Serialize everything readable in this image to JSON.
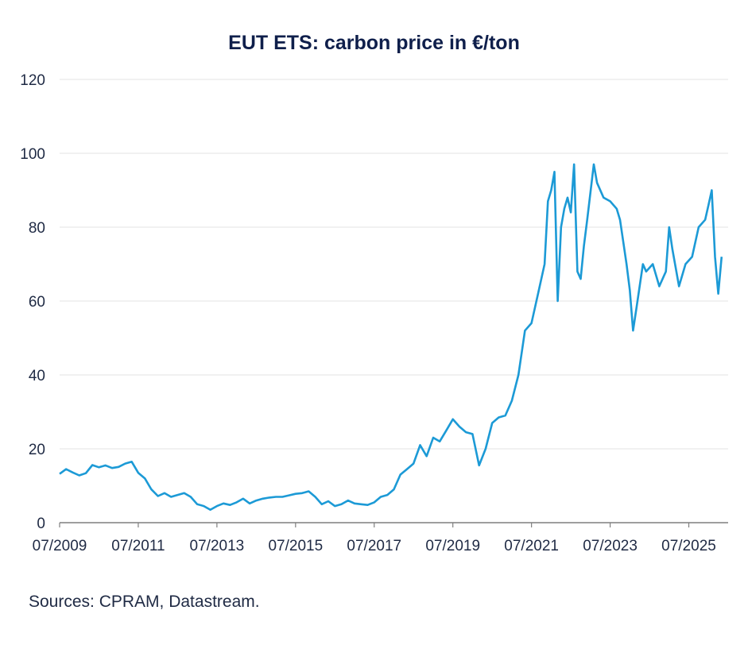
{
  "chart_data": {
    "type": "line",
    "title": "EUT ETS: carbon price in €/ton",
    "xlabel": "",
    "ylabel": "",
    "ylim": [
      0,
      120
    ],
    "yticks": [
      0,
      20,
      40,
      60,
      80,
      100,
      120
    ],
    "xticks": [
      "07/2009",
      "07/2011",
      "07/2013",
      "07/2015",
      "07/2017",
      "07/2019",
      "07/2021",
      "07/2023",
      "07/2025"
    ],
    "grid": "horizontal",
    "series": [
      {
        "color": "#1c9ad6",
        "points": [
          [
            "2009-07",
            13.2
          ],
          [
            "2009-09",
            14.5
          ],
          [
            "2009-11",
            13.6
          ],
          [
            "2010-01",
            12.8
          ],
          [
            "2010-03",
            13.4
          ],
          [
            "2010-05",
            15.6
          ],
          [
            "2010-07",
            15.0
          ],
          [
            "2010-09",
            15.5
          ],
          [
            "2010-11",
            14.8
          ],
          [
            "2011-01",
            15.1
          ],
          [
            "2011-03",
            16.0
          ],
          [
            "2011-05",
            16.5
          ],
          [
            "2011-07",
            13.5
          ],
          [
            "2011-09",
            12.0
          ],
          [
            "2011-11",
            9.0
          ],
          [
            "2012-01",
            7.2
          ],
          [
            "2012-03",
            8.0
          ],
          [
            "2012-05",
            7.0
          ],
          [
            "2012-07",
            7.5
          ],
          [
            "2012-09",
            8.0
          ],
          [
            "2012-11",
            7.0
          ],
          [
            "2013-01",
            5.0
          ],
          [
            "2013-03",
            4.5
          ],
          [
            "2013-05",
            3.5
          ],
          [
            "2013-07",
            4.5
          ],
          [
            "2013-09",
            5.2
          ],
          [
            "2013-11",
            4.8
          ],
          [
            "2014-01",
            5.5
          ],
          [
            "2014-03",
            6.5
          ],
          [
            "2014-05",
            5.2
          ],
          [
            "2014-07",
            6.0
          ],
          [
            "2014-09",
            6.5
          ],
          [
            "2014-11",
            6.8
          ],
          [
            "2015-01",
            7.0
          ],
          [
            "2015-03",
            7.0
          ],
          [
            "2015-05",
            7.4
          ],
          [
            "2015-07",
            7.8
          ],
          [
            "2015-09",
            8.0
          ],
          [
            "2015-11",
            8.5
          ],
          [
            "2016-01",
            7.0
          ],
          [
            "2016-03",
            5.0
          ],
          [
            "2016-05",
            5.8
          ],
          [
            "2016-07",
            4.5
          ],
          [
            "2016-09",
            5.0
          ],
          [
            "2016-11",
            6.0
          ],
          [
            "2017-01",
            5.2
          ],
          [
            "2017-03",
            5.0
          ],
          [
            "2017-05",
            4.8
          ],
          [
            "2017-07",
            5.5
          ],
          [
            "2017-09",
            7.0
          ],
          [
            "2017-11",
            7.5
          ],
          [
            "2018-01",
            9.0
          ],
          [
            "2018-03",
            13.0
          ],
          [
            "2018-05",
            14.5
          ],
          [
            "2018-07",
            16.0
          ],
          [
            "2018-09",
            21.0
          ],
          [
            "2018-11",
            18.0
          ],
          [
            "2019-01",
            23.0
          ],
          [
            "2019-03",
            22.0
          ],
          [
            "2019-05",
            25.0
          ],
          [
            "2019-07",
            28.0
          ],
          [
            "2019-09",
            26.0
          ],
          [
            "2019-11",
            24.5
          ],
          [
            "2020-01",
            24.0
          ],
          [
            "2020-03",
            15.5
          ],
          [
            "2020-05",
            20.0
          ],
          [
            "2020-07",
            27.0
          ],
          [
            "2020-09",
            28.5
          ],
          [
            "2020-11",
            29.0
          ],
          [
            "2021-01",
            33.0
          ],
          [
            "2021-03",
            40.0
          ],
          [
            "2021-05",
            52.0
          ],
          [
            "2021-07",
            54.0
          ],
          [
            "2021-09",
            62.0
          ],
          [
            "2021-11",
            70.0
          ],
          [
            "2021-12",
            87.0
          ],
          [
            "2022-01",
            90.0
          ],
          [
            "2022-02",
            95.0
          ],
          [
            "2022-03",
            60.0
          ],
          [
            "2022-04",
            80.0
          ],
          [
            "2022-05",
            85.0
          ],
          [
            "2022-06",
            88.0
          ],
          [
            "2022-07",
            84.0
          ],
          [
            "2022-08",
            97.0
          ],
          [
            "2022-09",
            68.0
          ],
          [
            "2022-10",
            66.0
          ],
          [
            "2022-11",
            75.0
          ],
          [
            "2022-12",
            82.0
          ],
          [
            "2023-02",
            97.0
          ],
          [
            "2023-03",
            92.0
          ],
          [
            "2023-05",
            88.0
          ],
          [
            "2023-07",
            87.0
          ],
          [
            "2023-09",
            85.0
          ],
          [
            "2023-10",
            82.0
          ],
          [
            "2023-11",
            76.0
          ],
          [
            "2023-12",
            70.0
          ],
          [
            "2024-01",
            63.0
          ],
          [
            "2024-02",
            52.0
          ],
          [
            "2024-03",
            58.0
          ],
          [
            "2024-05",
            70.0
          ],
          [
            "2024-06",
            68.0
          ],
          [
            "2024-08",
            70.0
          ],
          [
            "2024-10",
            64.0
          ],
          [
            "2024-12",
            68.0
          ],
          [
            "2025-01",
            80.0
          ],
          [
            "2025-02",
            74.0
          ],
          [
            "2025-04",
            64.0
          ],
          [
            "2025-06",
            70.0
          ],
          [
            "2025-08",
            72.0
          ],
          [
            "2025-10",
            80.0
          ],
          [
            "2025-12",
            82.0
          ],
          [
            "2026-01",
            86.0
          ],
          [
            "2026-02",
            90.0
          ],
          [
            "2026-03",
            72.0
          ],
          [
            "2026-04",
            62.0
          ],
          [
            "2026-05",
            72.0
          ]
        ]
      }
    ]
  },
  "footer": {
    "sources": "Sources: CPRAM, Datastream."
  }
}
